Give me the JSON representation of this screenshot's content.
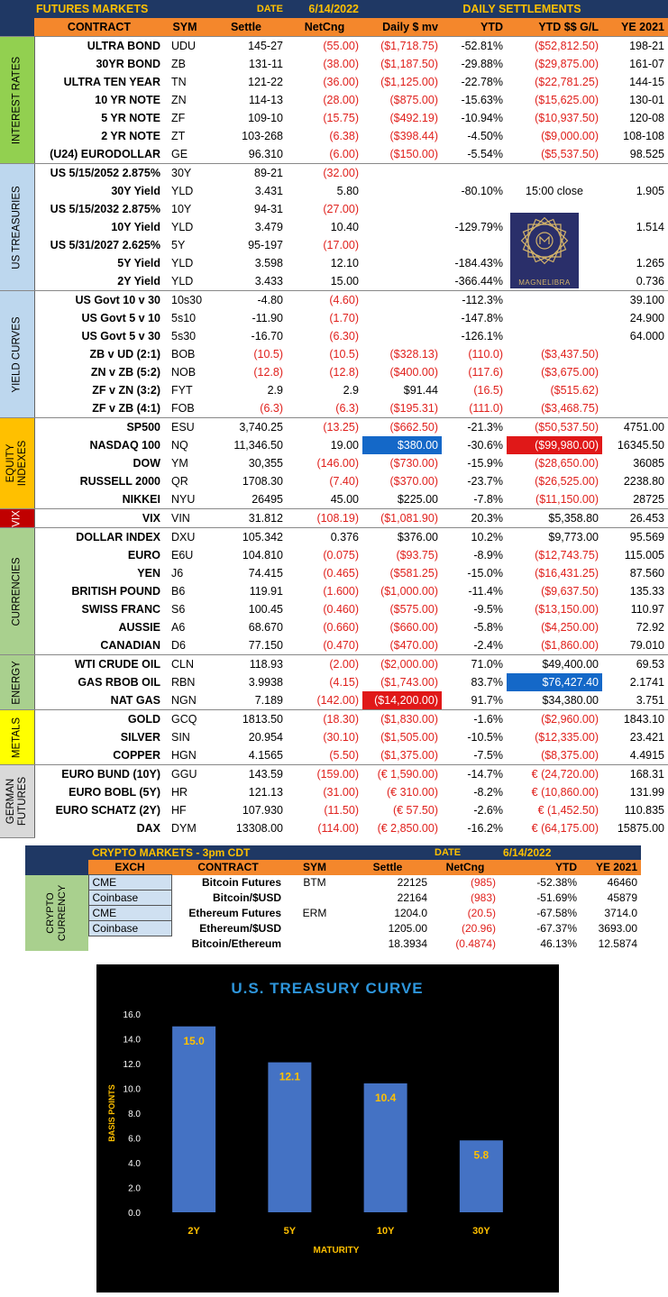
{
  "header": {
    "title": "FUTURES MARKETS",
    "date_label": "DATE",
    "date": "6/14/2022",
    "section": "DAILY SETTLEMENTS",
    "columns": [
      "CONTRACT",
      "SYM",
      "Settle",
      "NetCng",
      "Daily $ mv",
      "YTD",
      "YTD $$ G/L",
      "YE 2021"
    ]
  },
  "categories": {
    "interest_rates": "INTEREST RATES",
    "us_treasuries": "US TREASURIES",
    "yield_curves": "YIELD CURVES",
    "equity_indexes": "EQUITY INDEXES",
    "vix": "VIX",
    "currencies": "CURRENCIES",
    "energy": "ENERGY",
    "metals": "METALS",
    "german_futures": "GERMAN FUTURES"
  },
  "category_colors": {
    "interest_rates": "#92d050",
    "us_treasuries": "#bdd7ee",
    "yield_curves": "#bdd7ee",
    "equity_indexes": "#ffc000",
    "vix": "#c00000",
    "currencies": "#a9d08e",
    "energy": "#a9d08e",
    "metals": "#ffff00",
    "german_futures": "#d9d9d9"
  },
  "rows": [
    {
      "contract": "ULTRA BOND",
      "sym": "UDU",
      "settle": "145-27",
      "net": "(55.00)",
      "daily": "($1,718.75)",
      "ytd": "-52.81%",
      "ytdgl": "($52,812.50)",
      "ye": "198-21"
    },
    {
      "contract": "30YR BOND",
      "sym": "ZB",
      "settle": "131-11",
      "net": "(38.00)",
      "daily": "($1,187.50)",
      "ytd": "-29.88%",
      "ytdgl": "($29,875.00)",
      "ye": "161-07"
    },
    {
      "contract": "ULTRA TEN YEAR",
      "sym": "TN",
      "settle": "121-22",
      "net": "(36.00)",
      "daily": "($1,125.00)",
      "ytd": "-22.78%",
      "ytdgl": "($22,781.25)",
      "ye": "144-15"
    },
    {
      "contract": "10 YR NOTE",
      "sym": "ZN",
      "settle": "114-13",
      "net": "(28.00)",
      "daily": "($875.00)",
      "ytd": "-15.63%",
      "ytdgl": "($15,625.00)",
      "ye": "130-01"
    },
    {
      "contract": "5 YR NOTE",
      "sym": "ZF",
      "settle": "109-10",
      "net": "(15.75)",
      "daily": "($492.19)",
      "ytd": "-10.94%",
      "ytdgl": "($10,937.50)",
      "ye": "120-08"
    },
    {
      "contract": "2 YR NOTE",
      "sym": "ZT",
      "settle": "103-268",
      "net": "(6.38)",
      "daily": "($398.44)",
      "ytd": "-4.50%",
      "ytdgl": "($9,000.00)",
      "ye": "108-108"
    },
    {
      "contract": "(U24) EURODOLLAR",
      "sym": "GE",
      "settle": "96.310",
      "net": "(6.00)",
      "daily": "($150.00)",
      "ytd": "-5.54%",
      "ytdgl": "($5,537.50)",
      "ye": "98.525"
    },
    {
      "contract": "US 5/15/2052 2.875%",
      "sym": "30Y",
      "settle": "89-21",
      "net": "(32.00)",
      "daily": "",
      "ytd": "",
      "ytdgl": "",
      "ye": ""
    },
    {
      "contract": "30Y Yield",
      "sym": "YLD",
      "settle": "3.431",
      "net": "5.80",
      "daily": "",
      "ytd": "-80.10%",
      "ytdgl": "15:00 close",
      "ye": "1.905"
    },
    {
      "contract": "US 5/15/2032 2.875%",
      "sym": "10Y",
      "settle": "94-31",
      "net": "(27.00)",
      "daily": "",
      "ytd": "",
      "ytdgl": "",
      "ye": ""
    },
    {
      "contract": "10Y Yield",
      "sym": "YLD",
      "settle": "3.479",
      "net": "10.40",
      "daily": "",
      "ytd": "-129.79%",
      "ytdgl": "",
      "ye": "1.514"
    },
    {
      "contract": "US 5/31/2027 2.625%",
      "sym": "5Y",
      "settle": "95-197",
      "net": "(17.00)",
      "daily": "",
      "ytd": "",
      "ytdgl": "",
      "ye": ""
    },
    {
      "contract": "5Y Yield",
      "sym": "YLD",
      "settle": "3.598",
      "net": "12.10",
      "daily": "",
      "ytd": "-184.43%",
      "ytdgl": "",
      "ye": "1.265"
    },
    {
      "contract": "2Y Yield",
      "sym": "YLD",
      "settle": "3.433",
      "net": "15.00",
      "daily": "",
      "ytd": "-366.44%",
      "ytdgl": "",
      "ye": "0.736"
    },
    {
      "contract": "US Govt 10 v 30",
      "sym": "10s30",
      "settle": "-4.80",
      "net": "(4.60)",
      "daily": "",
      "ytd": "-112.3%",
      "ytdgl": "",
      "ye": "39.100"
    },
    {
      "contract": "US Govt 5 v 10",
      "sym": "5s10",
      "settle": "-11.90",
      "net": "(1.70)",
      "daily": "",
      "ytd": "-147.8%",
      "ytdgl": "",
      "ye": "24.900"
    },
    {
      "contract": "US Govt 5 v 30",
      "sym": "5s30",
      "settle": "-16.70",
      "net": "(6.30)",
      "daily": "",
      "ytd": "-126.1%",
      "ytdgl": "",
      "ye": "64.000"
    },
    {
      "contract": "ZB v UD (2:1)",
      "sym": "BOB",
      "settle": "(10.5)",
      "net": "(10.5)",
      "daily": "($328.13)",
      "ytd": "(110.0)",
      "ytdgl": "($3,437.50)",
      "ye": ""
    },
    {
      "contract": "ZN v ZB (5:2)",
      "sym": "NOB",
      "settle": "(12.8)",
      "net": "(12.8)",
      "daily": "($400.00)",
      "ytd": "(117.6)",
      "ytdgl": "($3,675.00)",
      "ye": ""
    },
    {
      "contract": "ZF v ZN (3:2)",
      "sym": "FYT",
      "settle": "2.9",
      "net": "2.9",
      "daily": "$91.44",
      "ytd": "(16.5)",
      "ytdgl": "($515.62)",
      "ye": ""
    },
    {
      "contract": "ZF v ZB (4:1)",
      "sym": "FOB",
      "settle": "(6.3)",
      "net": "(6.3)",
      "daily": "($195.31)",
      "ytd": "(111.0)",
      "ytdgl": "($3,468.75)",
      "ye": ""
    },
    {
      "contract": "SP500",
      "sym": "ESU",
      "settle": "3,740.25",
      "net": "(13.25)",
      "daily": "($662.50)",
      "ytd": "-21.3%",
      "ytdgl": "($50,537.50)",
      "ye": "4751.00"
    },
    {
      "contract": "NASDAQ 100",
      "sym": "NQ",
      "settle": "11,346.50",
      "net": "19.00",
      "daily": "$380.00",
      "ytd": "-30.6%",
      "ytdgl": "($99,980.00)",
      "ye": "16345.50"
    },
    {
      "contract": "DOW",
      "sym": "YM",
      "settle": "30,355",
      "net": "(146.00)",
      "daily": "($730.00)",
      "ytd": "-15.9%",
      "ytdgl": "($28,650.00)",
      "ye": "36085"
    },
    {
      "contract": "RUSSELL 2000",
      "sym": "QR",
      "settle": "1708.30",
      "net": "(7.40)",
      "daily": "($370.00)",
      "ytd": "-23.7%",
      "ytdgl": "($26,525.00)",
      "ye": "2238.80"
    },
    {
      "contract": "NIKKEI",
      "sym": "NYU",
      "settle": "26495",
      "net": "45.00",
      "daily": "$225.00",
      "ytd": "-7.8%",
      "ytdgl": "($11,150.00)",
      "ye": "28725"
    },
    {
      "contract": "VIX",
      "sym": "VIN",
      "settle": "31.812",
      "net": "(108.19)",
      "daily": "($1,081.90)",
      "ytd": "20.3%",
      "ytdgl": "$5,358.80",
      "ye": "26.453"
    },
    {
      "contract": "DOLLAR INDEX",
      "sym": "DXU",
      "settle": "105.342",
      "net": "0.376",
      "daily": "$376.00",
      "ytd": "10.2%",
      "ytdgl": "$9,773.00",
      "ye": "95.569"
    },
    {
      "contract": "EURO",
      "sym": "E6U",
      "settle": "104.810",
      "net": "(0.075)",
      "daily": "($93.75)",
      "ytd": "-8.9%",
      "ytdgl": "($12,743.75)",
      "ye": "115.005"
    },
    {
      "contract": "YEN",
      "sym": "J6",
      "settle": "74.415",
      "net": "(0.465)",
      "daily": "($581.25)",
      "ytd": "-15.0%",
      "ytdgl": "($16,431.25)",
      "ye": "87.560"
    },
    {
      "contract": "BRITISH POUND",
      "sym": "B6",
      "settle": "119.91",
      "net": "(1.600)",
      "daily": "($1,000.00)",
      "ytd": "-11.4%",
      "ytdgl": "($9,637.50)",
      "ye": "135.33"
    },
    {
      "contract": "SWISS FRANC",
      "sym": "S6",
      "settle": "100.45",
      "net": "(0.460)",
      "daily": "($575.00)",
      "ytd": "-9.5%",
      "ytdgl": "($13,150.00)",
      "ye": "110.97"
    },
    {
      "contract": "AUSSIE",
      "sym": "A6",
      "settle": "68.670",
      "net": "(0.660)",
      "daily": "($660.00)",
      "ytd": "-5.8%",
      "ytdgl": "($4,250.00)",
      "ye": "72.92"
    },
    {
      "contract": "CANADIAN",
      "sym": "D6",
      "settle": "77.150",
      "net": "(0.470)",
      "daily": "($470.00)",
      "ytd": "-2.4%",
      "ytdgl": "($1,860.00)",
      "ye": "79.010"
    },
    {
      "contract": "WTI CRUDE OIL",
      "sym": "CLN",
      "settle": "118.93",
      "net": "(2.00)",
      "daily": "($2,000.00)",
      "ytd": "71.0%",
      "ytdgl": "$49,400.00",
      "ye": "69.53"
    },
    {
      "contract": "GAS RBOB OIL",
      "sym": "RBN",
      "settle": "3.9938",
      "net": "(4.15)",
      "daily": "($1,743.00)",
      "ytd": "83.7%",
      "ytdgl": "$76,427.40",
      "ye": "2.1741"
    },
    {
      "contract": "NAT GAS",
      "sym": "NGN",
      "settle": "7.189",
      "net": "(142.00)",
      "daily": "($14,200.00)",
      "ytd": "91.7%",
      "ytdgl": "$34,380.00",
      "ye": "3.751"
    },
    {
      "contract": "GOLD",
      "sym": "GCQ",
      "settle": "1813.50",
      "net": "(18.30)",
      "daily": "($1,830.00)",
      "ytd": "-1.6%",
      "ytdgl": "($2,960.00)",
      "ye": "1843.10"
    },
    {
      "contract": "SILVER",
      "sym": "SIN",
      "settle": "20.954",
      "net": "(30.10)",
      "daily": "($1,505.00)",
      "ytd": "-10.5%",
      "ytdgl": "($12,335.00)",
      "ye": "23.421"
    },
    {
      "contract": "COPPER",
      "sym": "HGN",
      "settle": "4.1565",
      "net": "(5.50)",
      "daily": "($1,375.00)",
      "ytd": "-7.5%",
      "ytdgl": "($8,375.00)",
      "ye": "4.4915"
    },
    {
      "contract": "EURO BUND (10Y)",
      "sym": "GGU",
      "settle": "143.59",
      "net": "(159.00)",
      "daily": "(€ 1,590.00)",
      "ytd": "-14.7%",
      "ytdgl": "€      (24,720.00)",
      "ye": "168.31"
    },
    {
      "contract": "EURO BOBL (5Y)",
      "sym": "HR",
      "settle": "121.13",
      "net": "(31.00)",
      "daily": "(€ 310.00)",
      "ytd": "-8.2%",
      "ytdgl": "€      (10,860.00)",
      "ye": "131.99"
    },
    {
      "contract": "EURO SCHATZ (2Y)",
      "sym": "HF",
      "settle": "107.930",
      "net": "(11.50)",
      "daily": "(€ 57.50)",
      "ytd": "-2.6%",
      "ytdgl": "€        (1,452.50)",
      "ye": "110.835"
    },
    {
      "contract": "DAX",
      "sym": "DYM",
      "settle": "13308.00",
      "net": "(114.00)",
      "daily": "(€ 2,850.00)",
      "ytd": "-16.2%",
      "ytdgl": "€      (64,175.00)",
      "ye": "15875.00"
    }
  ],
  "logo": {
    "text": "MAGNELIBRA",
    "icon": "magnelibra-star-logo"
  },
  "crypto": {
    "title": "CRYPTO MARKETS - 3pm CDT",
    "date_label": "DATE",
    "date": "6/14/2022",
    "category": "CRYPTO CURRENCY",
    "columns": [
      "EXCH",
      "CONTRACT",
      "SYM",
      "Settle",
      "NetCng",
      "YTD",
      "YE 2021"
    ],
    "rows": [
      {
        "exch": "CME",
        "contract": "Bitcoin Futures",
        "sym": "BTM",
        "settle": "22125",
        "net": "(985)",
        "ytd": "-52.38%",
        "ye": "46460"
      },
      {
        "exch": "Coinbase",
        "contract": "Bitcoin/$USD",
        "sym": "",
        "settle": "22164",
        "net": "(983)",
        "ytd": "-51.69%",
        "ye": "45879"
      },
      {
        "exch": "CME",
        "contract": "Ethereum Futures",
        "sym": "ERM",
        "settle": "1204.0",
        "net": "(20.5)",
        "ytd": "-67.58%",
        "ye": "3714.0"
      },
      {
        "exch": "Coinbase",
        "contract": "Ethereum/$USD",
        "sym": "",
        "settle": "1205.00",
        "net": "(20.96)",
        "ytd": "-67.37%",
        "ye": "3693.00"
      },
      {
        "exch": "",
        "contract": "Bitcoin/Ethereum",
        "sym": "",
        "settle": "18.3934",
        "net": "(0.4874)",
        "ytd": "46.13%",
        "ye": "12.5874"
      }
    ]
  },
  "chart_data": {
    "type": "bar",
    "title": "U.S. TREASURY CURVE",
    "categories": [
      "2Y",
      "5Y",
      "10Y",
      "30Y"
    ],
    "values": [
      15.0,
      12.1,
      10.4,
      5.8
    ],
    "xlabel": "MATURITY",
    "ylabel": "BASIS POINTS",
    "ylim": [
      0,
      16
    ],
    "yticks": [
      "0.0",
      "2.0",
      "4.0",
      "6.0",
      "8.0",
      "10.0",
      "12.0",
      "14.0",
      "16.0"
    ],
    "data_labels": [
      "15.0",
      "12.1",
      "10.4",
      "5.8"
    ],
    "grid": false,
    "bar_color": "#4472c4",
    "background": "#000000",
    "title_color": "#2e96dc",
    "label_color": "#ffc000"
  }
}
